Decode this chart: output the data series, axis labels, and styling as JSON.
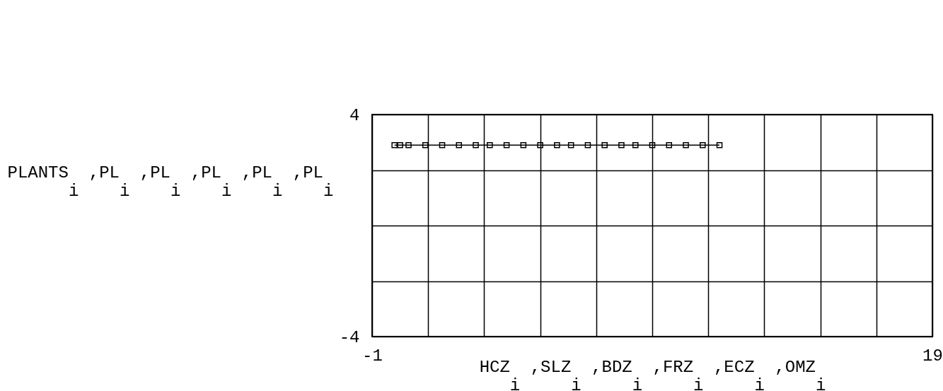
{
  "chart_data": {
    "type": "line",
    "xlabel": "HCZ$_{i}$ ,SLZ$_{i}$ ,BDZ$_{i}$ ,FRZ$_{i}$ ,ECZ$_{i}$ ,OMZ$_{i}$",
    "ylabel": "PLANTS$_{i}$ ,PL$_{i}$ ,PL$_{i}$ ,PL$_{i}$ ,PL$_{i}$ ,PL$_{i}$",
    "x": [
      -0.2,
      0,
      0.3,
      0.9,
      1.5,
      2.1,
      2.7,
      3.2,
      3.8,
      4.4,
      5,
      5.6,
      6.1,
      6.7,
      7.3,
      7.9,
      8.4,
      9,
      9.6,
      10.2,
      10.8,
      11.4
    ],
    "series": [
      {
        "color": "#000000",
        "values": [
          2.9,
          2.9,
          2.9,
          2.9,
          2.9,
          2.9,
          2.9,
          2.9,
          2.9,
          2.9,
          2.9,
          2.9,
          2.9,
          2.9,
          2.9,
          2.9,
          2.9,
          2.9,
          2.9,
          2.9,
          2.9,
          2.9
        ]
      }
    ],
    "xlim": [
      -1,
      19
    ],
    "ylim": [
      -4,
      4
    ],
    "xticks": [
      -1,
      {
        "value": 1,
        "label": null
      },
      {
        "value": 3,
        "label": null
      },
      {
        "value": 5,
        "label": null
      },
      {
        "value": 7,
        "label": null
      },
      {
        "value": 9,
        "label": null
      },
      {
        "value": 11,
        "label": null
      },
      {
        "value": 13,
        "label": null
      },
      {
        "value": 15,
        "label": null
      },
      {
        "value": 17,
        "label": null
      },
      19
    ],
    "yticks": [
      -4,
      {
        "value": -2,
        "label": null
      },
      {
        "value": 0,
        "label": null
      },
      {
        "value": 2,
        "label": null
      },
      4
    ],
    "grid": true,
    "marker": "square",
    "line_style": "solid"
  }
}
